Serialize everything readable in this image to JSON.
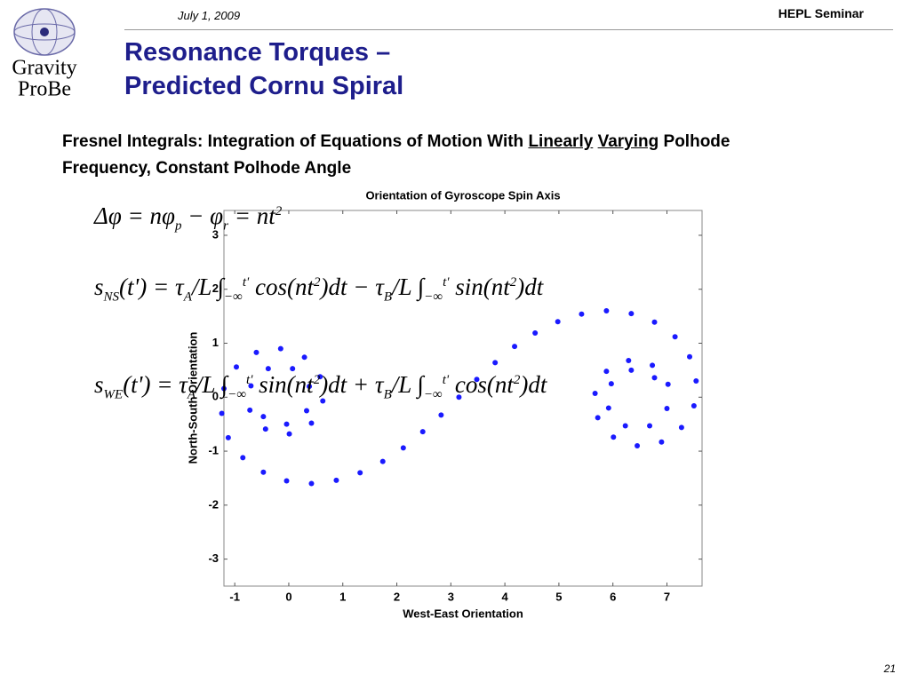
{
  "header": {
    "date": "July 1, 2009",
    "event": "HEPL Seminar",
    "logo": [
      "Gravity",
      "ProBe"
    ]
  },
  "title": [
    "Resonance Torques –",
    "Predicted Cornu Spiral"
  ],
  "subtitle": [
    {
      "text": "Fresnel Integrals: Integration of Equations of Motion With "
    },
    {
      "underline": "Linearly"
    },
    {
      "text": " "
    },
    {
      "underline": "Varying"
    },
    {
      "text": " Polhode Frequency, Constant Polhode Angle"
    }
  ],
  "equations": [
    [
      {
        "text": "Δφ = nφ"
      },
      {
        "sub": "p"
      },
      {
        "text": " − φ"
      },
      {
        "sub": "r"
      },
      {
        "text": " = nt"
      },
      {
        "sup": "2"
      }
    ],
    [
      {
        "text": "s"
      },
      {
        "sub": "NS"
      },
      {
        "text": "(t') = τ"
      },
      {
        "sub": "A"
      },
      {
        "text": "/L ∫"
      },
      {
        "sub": "−∞"
      },
      {
        "sup": "t'"
      },
      {
        "text": " cos(nt"
      },
      {
        "sup": "2"
      },
      {
        "text": ")dt − τ"
      },
      {
        "sub": "B"
      },
      {
        "text": "/L ∫"
      },
      {
        "sub": "−∞"
      },
      {
        "sup": "t'"
      },
      {
        "text": " sin(nt"
      },
      {
        "sup": "2"
      },
      {
        "text": ")dt"
      }
    ],
    [
      {
        "text": "s"
      },
      {
        "sub": "WE"
      },
      {
        "text": "(t') = τ"
      },
      {
        "sub": "A"
      },
      {
        "text": "/L ∫"
      },
      {
        "sub": "−∞"
      },
      {
        "sup": "t'"
      },
      {
        "text": " sin(nt"
      },
      {
        "sup": "2"
      },
      {
        "text": ")dt + τ"
      },
      {
        "sub": "B"
      },
      {
        "text": "/L ∫"
      },
      {
        "sub": "−∞"
      },
      {
        "sup": "t'"
      },
      {
        "text": " cos(nt"
      },
      {
        "sup": "2"
      },
      {
        "text": ")dt"
      }
    ]
  ],
  "page_number": "21",
  "chart_data": {
    "type": "scatter",
    "title": "Orientation of Gyroscope Spin Axis",
    "x_label": "West-East Orientation",
    "y_label": "North-South Orientation",
    "color": "#1a1aff",
    "x": [
      -0.47,
      -0.04,
      0.33,
      0.38,
      0.07,
      -0.38,
      -0.7,
      -0.72,
      -0.43,
      0.01,
      0.42,
      0.63,
      0.58,
      0.29,
      -0.15,
      -0.6,
      -0.97,
      -1.2,
      -1.24,
      -1.12,
      -0.85,
      -0.47,
      -0.04,
      0.42,
      0.88,
      1.32,
      1.74,
      2.12,
      2.48,
      2.82,
      3.15,
      3.48,
      3.82,
      4.18,
      4.56,
      4.98,
      5.42,
      5.88,
      6.34,
      6.77,
      7.15,
      7.42,
      7.54,
      7.5,
      7.27,
      6.9,
      6.45,
      6.01,
      5.72,
      5.67,
      5.88,
      6.29,
      6.73,
      7.02,
      7.0,
      6.68,
      6.23,
      5.92,
      5.97,
      6.34,
      6.77
    ],
    "values": [
      -0.36,
      -0.5,
      -0.25,
      0.2,
      0.53,
      0.53,
      0.21,
      -0.24,
      -0.59,
      -0.68,
      -0.48,
      -0.07,
      0.38,
      0.74,
      0.9,
      0.83,
      0.56,
      0.16,
      -0.3,
      -0.75,
      -1.12,
      -1.39,
      -1.55,
      -1.6,
      -1.54,
      -1.4,
      -1.19,
      -0.94,
      -0.64,
      -0.33,
      0,
      0.33,
      0.64,
      0.94,
      1.19,
      1.4,
      1.54,
      1.6,
      1.55,
      1.39,
      1.12,
      0.75,
      0.3,
      -0.16,
      -0.56,
      -0.83,
      -0.9,
      -0.74,
      -0.38,
      0.07,
      0.48,
      0.68,
      0.59,
      0.24,
      -0.21,
      -0.53,
      -0.53,
      -0.2,
      0.25,
      0.5,
      0.36
    ],
    "xlim": [
      -1.2,
      7.65
    ],
    "ylim": [
      -3.5,
      3.46
    ],
    "xticks": [
      -1,
      0,
      1,
      2,
      3,
      4,
      5,
      6,
      7
    ],
    "yticks": [
      -3,
      -2,
      -1,
      0,
      1,
      2,
      3
    ]
  }
}
